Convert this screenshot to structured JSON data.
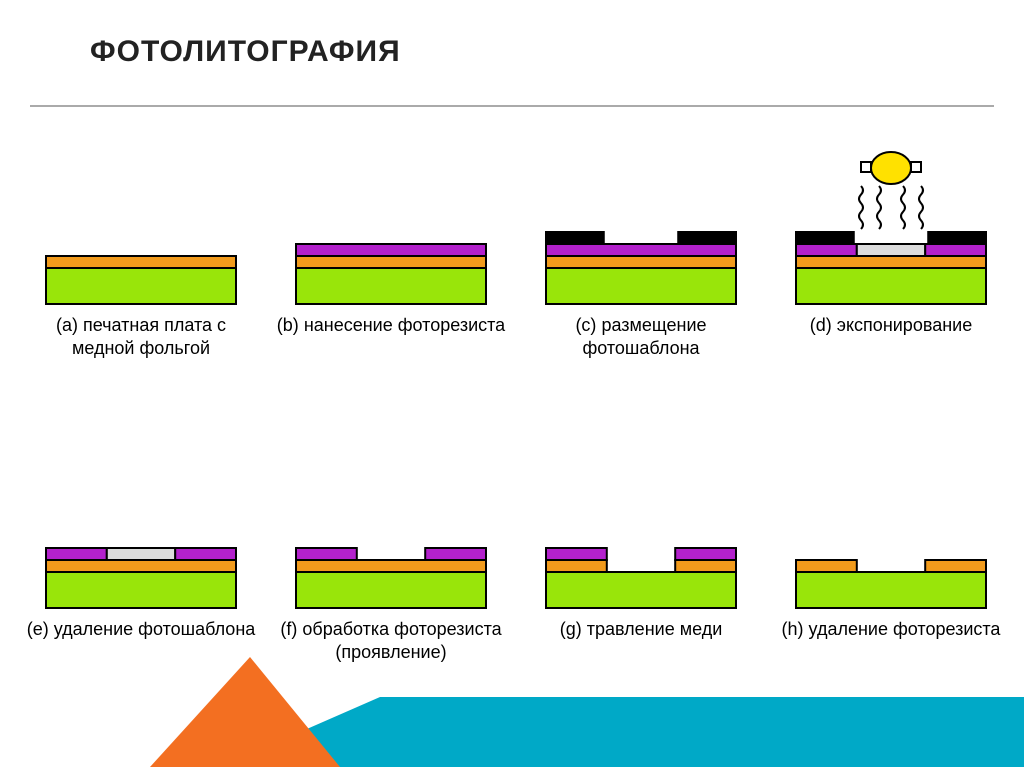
{
  "title": "ФОТОЛИТОГРАФИЯ",
  "colors": {
    "outline": "#000000",
    "background": "#ffffff",
    "substrate": "#99e50a",
    "copper": "#f29b1c",
    "photoresist": "#b321cc",
    "mask": "#000000",
    "exposed_resist": "#dcdcdc",
    "light_source_fill": "#ffe100",
    "uv_wave": "#000000",
    "corner_orange": "#f36f21",
    "corner_teal": "#00a9c7"
  },
  "fontsize": {
    "title": 30,
    "caption": 18
  },
  "layers": {
    "substrate_h": 36,
    "copper_h": 12,
    "resist_h": 12,
    "mask_h": 12,
    "stroke_w": 2,
    "width": 190,
    "exposed_center_ratio": 0.36
  },
  "steps": [
    {
      "tag": "(a)",
      "label": "печатная плата с медной фольгой",
      "stack": [
        "substrate",
        "copper"
      ]
    },
    {
      "tag": "(b)",
      "label": "нанесение фоторезиста",
      "stack": [
        "substrate",
        "copper",
        "resist"
      ]
    },
    {
      "tag": "(c)",
      "label": "размещение фотошаблона",
      "stack": [
        "substrate",
        "copper",
        "resist",
        "mask_sides"
      ]
    },
    {
      "tag": "(d)",
      "label": "экспонирование",
      "stack": [
        "substrate",
        "copper",
        "resist_exposed",
        "mask_sides"
      ],
      "light": true
    },
    {
      "tag": "(e)",
      "label": "удаление фотошаблона",
      "stack": [
        "substrate",
        "copper",
        "resist_exposed"
      ]
    },
    {
      "tag": "(f)",
      "label": "обработка фоторезиста (проявление)",
      "stack": [
        "substrate",
        "copper",
        "resist_sides"
      ]
    },
    {
      "tag": "(g)",
      "label": "травление меди",
      "stack": [
        "substrate",
        "copper_sides",
        "resist_sides"
      ]
    },
    {
      "tag": "(h)",
      "label": "удаление фоторезиста",
      "stack": [
        "substrate",
        "copper_sides"
      ]
    }
  ]
}
